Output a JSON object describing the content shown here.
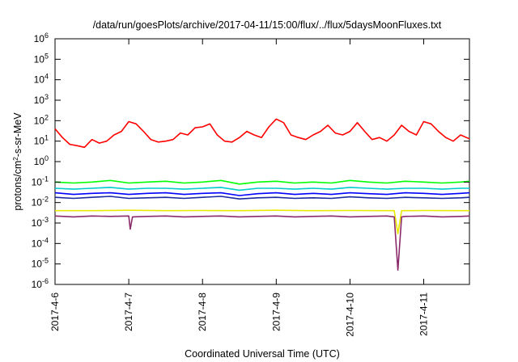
{
  "chart_data": {
    "type": "line",
    "title": "/data/run/goesPlots/archive/2017-04-11/15:00/flux/../flux/5daysMoonFluxes.txt",
    "xlabel": "Coordinated Universal Time (UTC)",
    "ylabel": "protons/cm2-s-sr-MeV",
    "ylabel_parts": {
      "before": "protons/cm",
      "sup": "2",
      "after": "-s-sr-MeV"
    },
    "yscale": "log",
    "ylim_exp": [
      -6,
      6
    ],
    "y_tick_labels": [
      {
        "exp": -6,
        "base": "10",
        "sup": "-6"
      },
      {
        "exp": -5,
        "base": "10",
        "sup": "-5"
      },
      {
        "exp": -4,
        "base": "10",
        "sup": "-4"
      },
      {
        "exp": -3,
        "base": "10",
        "sup": "-3"
      },
      {
        "exp": -2,
        "base": "10",
        "sup": "-2"
      },
      {
        "exp": -1,
        "base": "10",
        "sup": "-1"
      },
      {
        "exp": 0,
        "base": "10",
        "sup": "0"
      },
      {
        "exp": 1,
        "base": "10",
        "sup": "1"
      },
      {
        "exp": 2,
        "base": "10",
        "sup": "2"
      },
      {
        "exp": 3,
        "base": "10",
        "sup": "3"
      },
      {
        "exp": 4,
        "base": "10",
        "sup": "4"
      },
      {
        "exp": 5,
        "base": "10",
        "sup": "5"
      },
      {
        "exp": 6,
        "base": "10",
        "sup": "6"
      }
    ],
    "xlim_days": [
      0,
      5.62
    ],
    "x_ticks": [
      {
        "day": 0,
        "label": "2017-4-6"
      },
      {
        "day": 1,
        "label": "2017-4-7"
      },
      {
        "day": 2,
        "label": "2017-4-8"
      },
      {
        "day": 3,
        "label": "2017-4-9"
      },
      {
        "day": 4,
        "label": "2017-4-10"
      },
      {
        "day": 5,
        "label": "2017-4-11"
      }
    ],
    "grid": false,
    "legend": "none",
    "series": [
      {
        "color": "#ff0000",
        "x": [
          0.0,
          0.1,
          0.2,
          0.3,
          0.4,
          0.5,
          0.6,
          0.7,
          0.8,
          0.9,
          1.0,
          1.1,
          1.2,
          1.3,
          1.4,
          1.5,
          1.6,
          1.7,
          1.8,
          1.9,
          2.0,
          2.1,
          2.2,
          2.3,
          2.4,
          2.5,
          2.6,
          2.7,
          2.8,
          2.9,
          3.0,
          3.1,
          3.2,
          3.3,
          3.4,
          3.5,
          3.6,
          3.7,
          3.8,
          3.9,
          4.0,
          4.1,
          4.2,
          4.3,
          4.4,
          4.5,
          4.6,
          4.7,
          4.8,
          4.9,
          5.0,
          5.1,
          5.2,
          5.3,
          5.4,
          5.5,
          5.62
        ],
        "y": [
          40,
          15,
          7,
          6,
          5,
          12,
          8,
          10,
          20,
          30,
          90,
          70,
          30,
          12,
          9,
          10,
          12,
          25,
          20,
          45,
          50,
          70,
          20,
          10,
          9,
          15,
          30,
          20,
          15,
          50,
          120,
          80,
          20,
          15,
          12,
          20,
          30,
          60,
          25,
          20,
          30,
          80,
          30,
          12,
          15,
          10,
          20,
          60,
          30,
          20,
          90,
          70,
          30,
          15,
          10,
          20,
          13
        ]
      },
      {
        "color": "#00ff00",
        "x": [
          0.0,
          0.25,
          0.5,
          0.75,
          1.0,
          1.25,
          1.5,
          1.75,
          2.0,
          2.25,
          2.5,
          2.75,
          3.0,
          3.25,
          3.5,
          3.75,
          4.0,
          4.25,
          4.5,
          4.75,
          5.0,
          5.25,
          5.5,
          5.62
        ],
        "y": [
          0.1,
          0.09,
          0.1,
          0.12,
          0.09,
          0.1,
          0.11,
          0.09,
          0.1,
          0.12,
          0.08,
          0.1,
          0.11,
          0.09,
          0.1,
          0.09,
          0.12,
          0.1,
          0.09,
          0.11,
          0.1,
          0.09,
          0.1,
          0.11
        ]
      },
      {
        "color": "#00cccc",
        "x": [
          0.0,
          0.25,
          0.5,
          0.75,
          1.0,
          1.25,
          1.5,
          1.75,
          2.0,
          2.25,
          2.5,
          2.75,
          3.0,
          3.25,
          3.5,
          3.75,
          4.0,
          4.25,
          4.5,
          4.75,
          5.0,
          5.25,
          5.5,
          5.62
        ],
        "y": [
          0.05,
          0.045,
          0.05,
          0.055,
          0.045,
          0.05,
          0.05,
          0.045,
          0.05,
          0.055,
          0.04,
          0.05,
          0.05,
          0.045,
          0.05,
          0.045,
          0.055,
          0.05,
          0.045,
          0.05,
          0.05,
          0.045,
          0.05,
          0.05
        ]
      },
      {
        "color": "#0000ff",
        "x": [
          0.0,
          0.25,
          0.5,
          0.75,
          1.0,
          1.25,
          1.5,
          1.75,
          2.0,
          2.25,
          2.5,
          2.75,
          3.0,
          3.25,
          3.5,
          3.75,
          4.0,
          4.25,
          4.5,
          4.75,
          5.0,
          5.25,
          5.5,
          5.62
        ],
        "y": [
          0.03,
          0.025,
          0.028,
          0.03,
          0.025,
          0.028,
          0.03,
          0.025,
          0.028,
          0.03,
          0.022,
          0.027,
          0.03,
          0.025,
          0.028,
          0.025,
          0.03,
          0.027,
          0.025,
          0.03,
          0.028,
          0.025,
          0.028,
          0.03
        ]
      },
      {
        "color": "#1a2aa0",
        "x": [
          0.0,
          0.25,
          0.5,
          0.75,
          1.0,
          1.25,
          1.5,
          1.75,
          2.0,
          2.25,
          2.5,
          2.75,
          3.0,
          3.25,
          3.5,
          3.75,
          4.0,
          4.25,
          4.5,
          4.75,
          5.0,
          5.25,
          5.5,
          5.62
        ],
        "y": [
          0.018,
          0.016,
          0.018,
          0.02,
          0.016,
          0.017,
          0.018,
          0.016,
          0.018,
          0.02,
          0.015,
          0.017,
          0.018,
          0.016,
          0.017,
          0.016,
          0.019,
          0.017,
          0.016,
          0.018,
          0.017,
          0.016,
          0.017,
          0.018
        ]
      },
      {
        "color": "#e8e800",
        "x": [
          0.0,
          0.5,
          1.0,
          1.5,
          2.0,
          2.5,
          3.0,
          3.5,
          4.0,
          4.5,
          4.6,
          4.65,
          4.7,
          4.75,
          4.8,
          5.0,
          5.5,
          5.62
        ],
        "y": [
          0.004,
          0.004,
          0.0042,
          0.004,
          0.0041,
          0.004,
          0.0042,
          0.004,
          0.0041,
          0.004,
          0.004,
          0.0003,
          0.004,
          0.004,
          0.004,
          0.0041,
          0.004,
          0.004
        ]
      },
      {
        "color": "#8b2a6a",
        "x": [
          0.0,
          0.25,
          0.5,
          0.75,
          1.0,
          1.02,
          1.05,
          1.25,
          1.5,
          1.75,
          2.0,
          2.25,
          2.5,
          2.75,
          3.0,
          3.25,
          3.5,
          3.75,
          4.0,
          4.25,
          4.5,
          4.6,
          4.65,
          4.7,
          4.75,
          5.0,
          5.25,
          5.5,
          5.62
        ],
        "y": [
          0.0022,
          0.002,
          0.0022,
          0.0021,
          0.0022,
          0.0005,
          0.002,
          0.0021,
          0.0022,
          0.002,
          0.0021,
          0.0022,
          0.002,
          0.0021,
          0.0022,
          0.002,
          0.0021,
          0.0022,
          0.002,
          0.0021,
          0.0022,
          0.002,
          5e-06,
          0.002,
          0.0021,
          0.0022,
          0.002,
          0.0021,
          0.0022
        ]
      }
    ]
  }
}
